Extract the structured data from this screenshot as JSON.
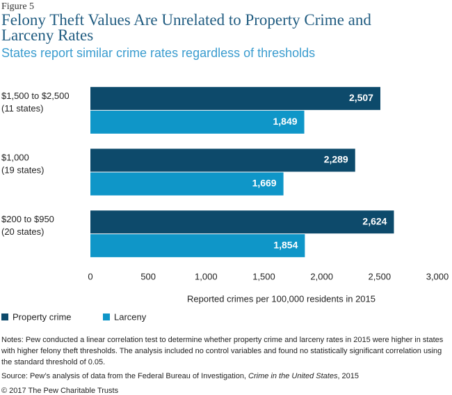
{
  "figure_label": "Figure 5",
  "chart_data": {
    "type": "hbar",
    "title": "Felony Theft Values Are Unrelated to Property Crime and Larceny Rates",
    "subtitle": "States report similar crime rates regardless of thresholds",
    "categories": [
      "$1,500 to $2,500",
      "$1,000",
      "$200 to $950"
    ],
    "category_notes": [
      "(11 states)",
      "(19 states)",
      "(20 states)"
    ],
    "series": [
      {
        "name": "Property crime",
        "color": "#0d4a6b",
        "values": [
          2507,
          2289,
          2624
        ],
        "value_labels": [
          "2,507",
          "2,289",
          "2,624"
        ]
      },
      {
        "name": "Larceny",
        "color": "#0f96c8",
        "values": [
          1849,
          1669,
          1854
        ],
        "value_labels": [
          "1,849",
          "1,669",
          "1,854"
        ]
      }
    ],
    "xlim": [
      0,
      3000
    ],
    "xticks": [
      0,
      500,
      {
        "value": 1000,
        "label": "1,000"
      },
      {
        "value": 1500,
        "label": "1,500"
      },
      {
        "value": 2000,
        "label": "2,000"
      },
      {
        "value": 2500,
        "label": "2,500"
      },
      {
        "value": 3000,
        "label": "3,000"
      }
    ],
    "x_label": "Reported crimes per 100,000 residents in 2015",
    "grid": false,
    "legend": "bottom-left"
  },
  "notes": "Notes: Pew conducted a linear correlation test to determine whether property crime and larceny rates in 2015 were higher in states with higher felony theft thresholds. The analysis included no control variables and found no statistically significant correlation using the standard threshold of 0.05.",
  "source": [
    "Source: Pew’s analysis of data from the Federal Bureau of Investigation, ",
    "Crime in the United States",
    ", 2015"
  ],
  "copyright": "© 2017 The Pew Charitable Trusts"
}
